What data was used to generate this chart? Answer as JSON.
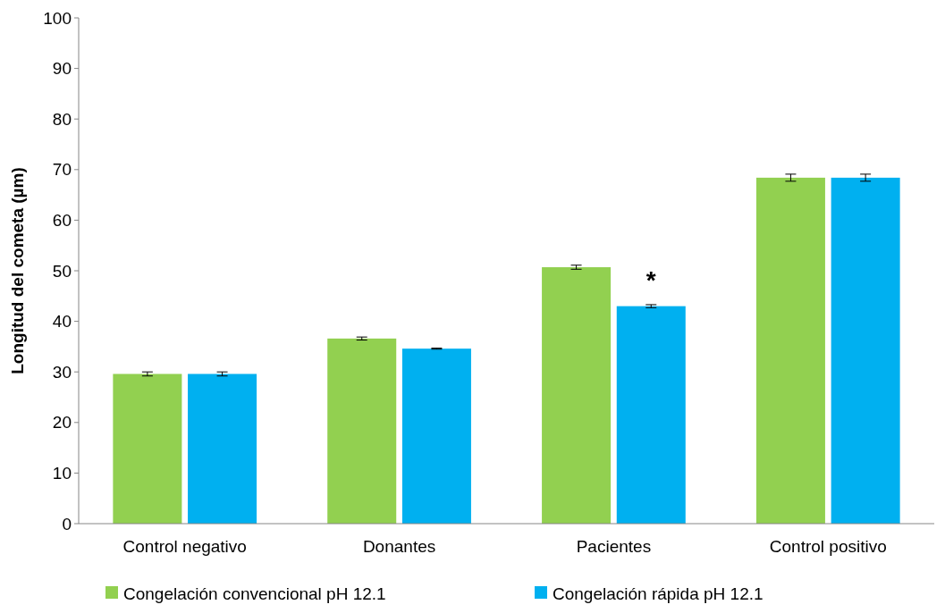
{
  "chart_data": {
    "type": "bar",
    "ylabel": "Longitud del cometa (µm)",
    "categories": [
      "Control negativo",
      "Donantes",
      "Pacientes",
      "Control positivo"
    ],
    "series": [
      {
        "name": "Congelación convencional pH 12.1",
        "color": "#92d050",
        "values": [
          29.6,
          36.6,
          50.7,
          68.4
        ],
        "errors": [
          0.4,
          0.3,
          0.4,
          0.7
        ]
      },
      {
        "name": "Congelación rápida pH 12.1",
        "color": "#00b0f0",
        "values": [
          29.6,
          34.6,
          43.0,
          68.4
        ],
        "errors": [
          0.4,
          0.1,
          0.3,
          0.7
        ]
      }
    ],
    "ylim": [
      0,
      100
    ],
    "yticks": [
      0,
      10,
      20,
      30,
      40,
      50,
      60,
      70,
      80,
      90,
      100
    ],
    "grid": false,
    "legend": "bottom",
    "annotations": [
      {
        "text": "*",
        "x": "Pacientes",
        "y": 50
      }
    ]
  }
}
